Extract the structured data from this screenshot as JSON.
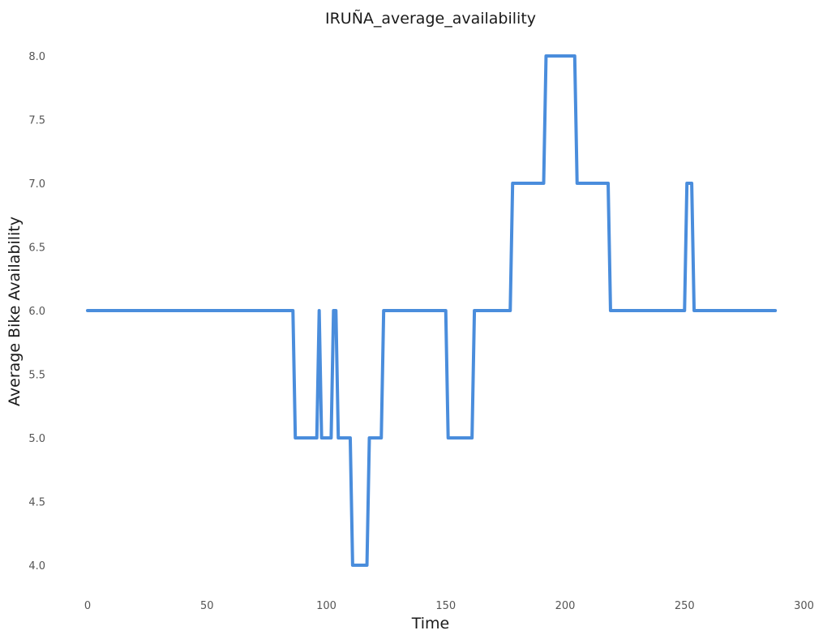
{
  "chart_data": {
    "type": "line",
    "title": "IRUÑA_average_availability",
    "xlabel": "Time",
    "ylabel": "Average Bike Availability",
    "xlim": [
      -5,
      300
    ],
    "ylim": [
      3.8,
      8.1
    ],
    "xticks": [
      0,
      50,
      100,
      150,
      200,
      250,
      300
    ],
    "yticks": [
      4.0,
      4.5,
      5.0,
      5.5,
      6.0,
      6.5,
      7.0,
      7.5,
      8.0
    ],
    "ytick_labels": [
      "4.0",
      "4.5",
      "5.0",
      "5.5",
      "6.0",
      "6.5",
      "7.0",
      "7.5",
      "8.0"
    ],
    "xtick_labels": [
      "0",
      "50",
      "100",
      "150",
      "200",
      "250",
      "300"
    ],
    "grid": false,
    "color": "#4a8ddc",
    "series": [
      {
        "x": [
          0,
          86,
          87,
          96,
          97,
          98,
          102,
          103,
          104,
          105,
          110,
          111,
          117,
          118,
          123,
          124,
          150,
          151,
          161,
          162,
          177,
          178,
          191,
          192,
          204,
          205,
          218,
          219,
          250,
          251,
          253,
          254,
          288
        ],
        "y": [
          6,
          6,
          5,
          5,
          6,
          5,
          5,
          6,
          6,
          5,
          5,
          4,
          4,
          5,
          5,
          6,
          6,
          5,
          5,
          6,
          6,
          7,
          7,
          8,
          8,
          7,
          7,
          6,
          6,
          7,
          7,
          6,
          6
        ]
      }
    ]
  }
}
